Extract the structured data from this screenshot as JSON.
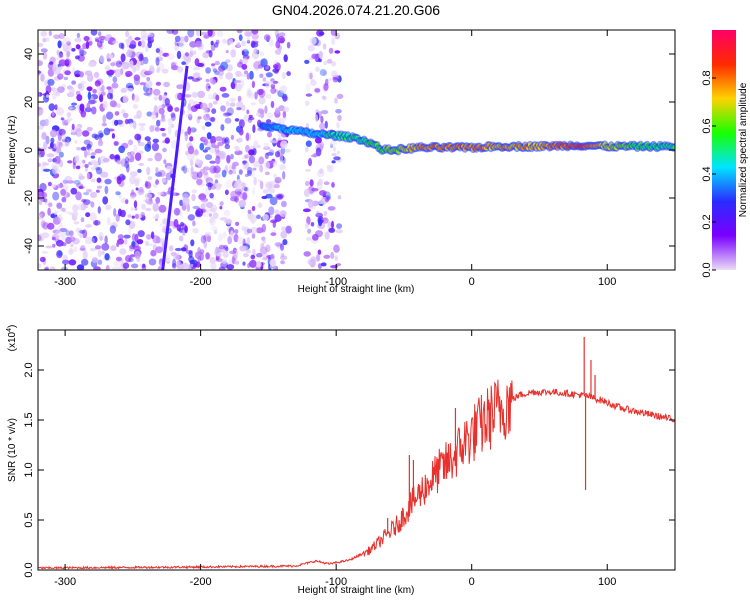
{
  "title": "GN04.2026.074.21.20.G06",
  "chart_data": [
    {
      "type": "heatmap",
      "name": "spectrogram",
      "xlabel": "Height of straight line (km)",
      "ylabel": "Frequency (Hz)",
      "xlim": [
        -320,
        150
      ],
      "ylim": [
        -50,
        50
      ],
      "xticks": [
        -300,
        -200,
        -100,
        0,
        100
      ],
      "xtick_labels": [
        "-300",
        "-200",
        "-100",
        "0",
        "100"
      ],
      "yticks": [
        -40,
        -20,
        0,
        20,
        40
      ],
      "ytick_labels": [
        "-40",
        "-20",
        "0",
        "20",
        "40"
      ],
      "ridge": {
        "x": [
          -155,
          -140,
          -120,
          -100,
          -85,
          -75,
          -65,
          -55,
          -40,
          -20,
          0,
          20,
          50,
          80,
          100,
          120,
          150
        ],
        "y": [
          10,
          9,
          7,
          6,
          5,
          3,
          0,
          0,
          1,
          1,
          1,
          1.5,
          1.5,
          2,
          1.5,
          1.5,
          1.5
        ],
        "amplitude": [
          0.35,
          0.45,
          0.45,
          0.55,
          0.55,
          0.6,
          0.65,
          0.7,
          0.8,
          0.85,
          0.85,
          0.8,
          0.8,
          0.9,
          0.75,
          0.6,
          0.55
        ]
      },
      "diagonal_streak": {
        "x": [
          -228,
          -210
        ],
        "y": [
          -50,
          35
        ]
      },
      "colorbar": {
        "label": "Normalized spectral amplitude",
        "range": [
          0,
          1
        ],
        "ticks": [
          0.0,
          0.2,
          0.4,
          0.6,
          0.8
        ],
        "tick_labels": [
          "0.0",
          "0.2",
          "0.4",
          "0.6",
          "0.8"
        ],
        "colors": [
          "#e9dcf7",
          "#7a00ff",
          "#2b2bff",
          "#00e5ff",
          "#19ff00",
          "#ffd200",
          "#ff2a00",
          "#ff0066"
        ]
      }
    },
    {
      "type": "line",
      "name": "snr",
      "xlabel": "Height of straight line (km)",
      "ylabel": "SNR (10 * v/v)",
      "scale_label": "(x10",
      "scale_exponent": "4",
      "scale_close": ")",
      "xlim": [
        -320,
        150
      ],
      "ylim": [
        0,
        2.4
      ],
      "xticks": [
        -300,
        -200,
        -100,
        0,
        100
      ],
      "xtick_labels": [
        "-300",
        "-200",
        "-100",
        "0",
        "100"
      ],
      "yticks": [
        0.0,
        0.5,
        1.0,
        1.5,
        2.0
      ],
      "ytick_labels": [
        "0.0",
        "0.5",
        "1.0",
        "1.5",
        "2.0"
      ],
      "color": "#e8312c",
      "envelope": {
        "x": [
          -320,
          -200,
          -130,
          -115,
          -105,
          -90,
          -75,
          -65,
          -55,
          -45,
          -35,
          -25,
          -15,
          -5,
          5,
          15,
          25,
          35,
          45,
          60,
          75,
          85,
          95,
          110,
          130,
          150
        ],
        "y": [
          0.02,
          0.03,
          0.04,
          0.09,
          0.06,
          0.1,
          0.2,
          0.32,
          0.45,
          0.65,
          0.82,
          0.98,
          1.1,
          1.28,
          1.42,
          1.55,
          1.66,
          1.75,
          1.78,
          1.78,
          1.76,
          1.74,
          1.7,
          1.62,
          1.56,
          1.5
        ]
      },
      "spikes": [
        {
          "x": -62,
          "y": 0.52
        },
        {
          "x": -46,
          "y": 1.15
        },
        {
          "x": -43,
          "y": 1.1
        },
        {
          "x": -12,
          "y": 1.62
        },
        {
          "x": 83,
          "y": 2.33
        },
        {
          "x": 84,
          "y": 0.8
        },
        {
          "x": 88,
          "y": 2.1
        },
        {
          "x": 91,
          "y": 1.95
        }
      ]
    }
  ]
}
